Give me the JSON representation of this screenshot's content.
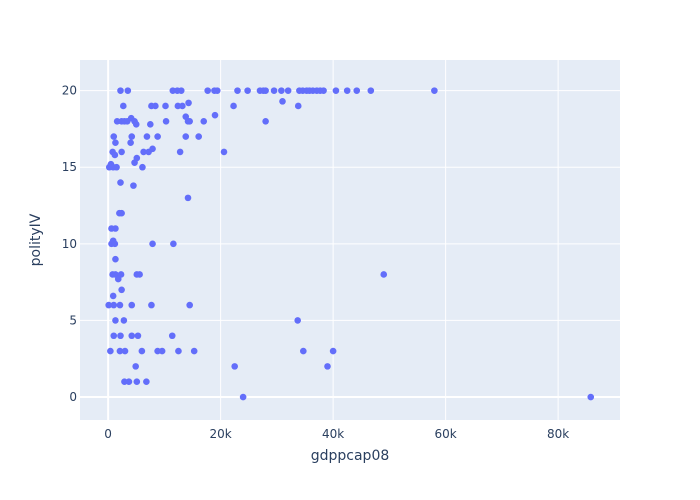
{
  "chart_data": {
    "type": "scatter",
    "title": "",
    "xlabel": "gdppcap08",
    "ylabel": "polityIV",
    "xlim": [
      -5000,
      91000
    ],
    "ylim": [
      -1.5,
      22
    ],
    "x_ticks": [
      0,
      20000,
      40000,
      60000,
      80000
    ],
    "x_tick_labels": [
      "0",
      "20k",
      "40k",
      "60k",
      "80k"
    ],
    "y_ticks": [
      0,
      5,
      10,
      15,
      20
    ],
    "y_tick_labels": [
      "0",
      "5",
      "10",
      "15",
      "20"
    ],
    "grid": true,
    "colors": {
      "marker": "#636efa",
      "plot_bg": "#e5ecf6",
      "tick_text": "#2a3f5f"
    },
    "series": [
      {
        "points": [
          [
            2200,
            20
          ],
          [
            3500,
            20
          ],
          [
            11500,
            20
          ],
          [
            12300,
            20
          ],
          [
            13000,
            20
          ],
          [
            17700,
            20
          ],
          [
            18900,
            20
          ],
          [
            19400,
            20
          ],
          [
            23000,
            20
          ],
          [
            24800,
            20
          ],
          [
            27000,
            20
          ],
          [
            27600,
            20
          ],
          [
            28000,
            20
          ],
          [
            29500,
            20
          ],
          [
            30800,
            20
          ],
          [
            32000,
            20
          ],
          [
            34000,
            20
          ],
          [
            34600,
            20
          ],
          [
            35300,
            20
          ],
          [
            35800,
            20
          ],
          [
            36400,
            20
          ],
          [
            37100,
            20
          ],
          [
            37700,
            20
          ],
          [
            38300,
            20
          ],
          [
            40500,
            20
          ],
          [
            42500,
            20
          ],
          [
            44200,
            20
          ],
          [
            46700,
            20
          ],
          [
            58000,
            20
          ],
          [
            2700,
            19
          ],
          [
            7700,
            19
          ],
          [
            8400,
            19
          ],
          [
            10200,
            19
          ],
          [
            12400,
            19
          ],
          [
            13200,
            19
          ],
          [
            14300,
            19.2
          ],
          [
            22300,
            19
          ],
          [
            31000,
            19.3
          ],
          [
            33800,
            19
          ],
          [
            1600,
            18
          ],
          [
            2400,
            18
          ],
          [
            2900,
            18
          ],
          [
            3400,
            18
          ],
          [
            4100,
            18.2
          ],
          [
            4700,
            18
          ],
          [
            5000,
            17.8
          ],
          [
            7500,
            17.8
          ],
          [
            10300,
            18
          ],
          [
            13800,
            18.3
          ],
          [
            14200,
            18
          ],
          [
            14500,
            18
          ],
          [
            17000,
            18
          ],
          [
            19000,
            18.4
          ],
          [
            28000,
            18
          ],
          [
            1000,
            17
          ],
          [
            4200,
            17
          ],
          [
            6900,
            17
          ],
          [
            8800,
            17
          ],
          [
            13800,
            17
          ],
          [
            16100,
            17
          ],
          [
            1300,
            16.6
          ],
          [
            4000,
            16.6
          ],
          [
            800,
            16
          ],
          [
            1200,
            15.8
          ],
          [
            2400,
            16
          ],
          [
            6300,
            16
          ],
          [
            7200,
            16
          ],
          [
            7900,
            16.2
          ],
          [
            12800,
            16
          ],
          [
            20600,
            16
          ],
          [
            200,
            15
          ],
          [
            500,
            15.2
          ],
          [
            900,
            15
          ],
          [
            1500,
            15
          ],
          [
            4700,
            15.3
          ],
          [
            5100,
            15.6
          ],
          [
            6100,
            15
          ],
          [
            2200,
            14
          ],
          [
            4500,
            13.8
          ],
          [
            14200,
            13
          ],
          [
            2000,
            12
          ],
          [
            2400,
            12
          ],
          [
            600,
            11
          ],
          [
            1300,
            11
          ],
          [
            600,
            10
          ],
          [
            900,
            10.2
          ],
          [
            1200,
            10
          ],
          [
            7900,
            10
          ],
          [
            11600,
            10
          ],
          [
            1300,
            9
          ],
          [
            800,
            8
          ],
          [
            1300,
            8
          ],
          [
            1800,
            7.7
          ],
          [
            2300,
            8
          ],
          [
            5100,
            8
          ],
          [
            5600,
            8
          ],
          [
            49000,
            8
          ],
          [
            2400,
            7
          ],
          [
            900,
            6.6
          ],
          [
            100,
            6
          ],
          [
            1000,
            6
          ],
          [
            2100,
            6
          ],
          [
            4200,
            6
          ],
          [
            7700,
            6
          ],
          [
            14500,
            6
          ],
          [
            1300,
            5
          ],
          [
            2800,
            5
          ],
          [
            33700,
            5
          ],
          [
            1000,
            4
          ],
          [
            2200,
            4
          ],
          [
            4200,
            4
          ],
          [
            5300,
            4
          ],
          [
            11400,
            4
          ],
          [
            400,
            3
          ],
          [
            2100,
            3
          ],
          [
            3000,
            3
          ],
          [
            6000,
            3
          ],
          [
            8800,
            3
          ],
          [
            9600,
            3
          ],
          [
            12500,
            3
          ],
          [
            15300,
            3
          ],
          [
            34700,
            3
          ],
          [
            40000,
            3
          ],
          [
            4900,
            2
          ],
          [
            22500,
            2
          ],
          [
            39000,
            2
          ],
          [
            2900,
            1
          ],
          [
            3700,
            1
          ],
          [
            5100,
            1
          ],
          [
            6800,
            1
          ],
          [
            24000,
            0
          ],
          [
            85800,
            0
          ]
        ]
      }
    ]
  }
}
